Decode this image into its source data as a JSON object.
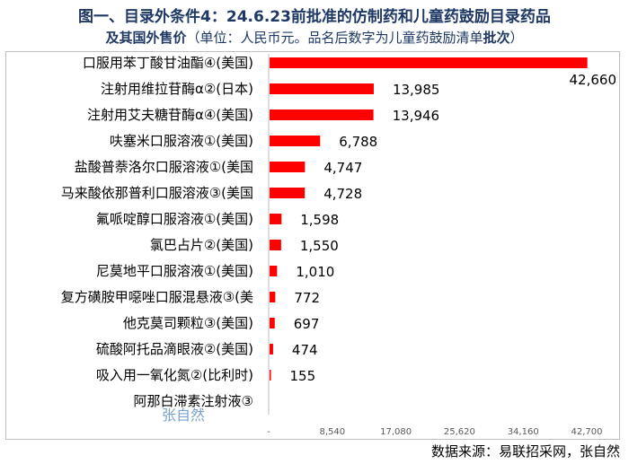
{
  "title": {
    "line1": "图一、目录外条件4：24.6.23前批准的仿制药和儿童药鼓励目录药品",
    "line2_bold": "及其国外售价",
    "line2_normal": "（单位：人民币元。品名后数字为儿童药鼓励清单",
    "line2_bold_end": "批次",
    "line2_close": "）"
  },
  "watermark": "张自然",
  "source": "数据来源：易联招采网，张自然",
  "chart_data": {
    "type": "bar",
    "orientation": "horizontal",
    "categories": [
      "口服用苯丁酸甘油酯④(美国)",
      "注射用维拉苷酶α②(日本)",
      "注射用艾夫糖苷酶α④(美国)",
      "呋塞米口服溶液①(美国)",
      "盐酸普萘洛尔口服溶液①(美国",
      "马来酸依那普利口服溶液③(美国",
      "氟哌啶醇口服溶液①(美国)",
      "氯巴占片②(美国)",
      "尼莫地平口服溶液①(美国)",
      "复方磺胺甲噁唑口服混悬液③(美",
      "他克莫司颗粒③(美国)",
      "硫酸阿托品滴眼液②(美国)",
      "吸入用一氧化氮②(比利时)",
      "阿那白滞素注射液③"
    ],
    "values": [
      42660,
      13985,
      13946,
      6788,
      4747,
      4728,
      1598,
      1550,
      1010,
      772,
      697,
      474,
      155,
      null
    ],
    "value_labels": [
      "42,660",
      "13,985",
      "13,946",
      "6,788",
      "4,747",
      "4,728",
      "1,598",
      "1,550",
      "1,010",
      "772",
      "697",
      "474",
      "155",
      ""
    ],
    "xlim": [
      0,
      42700
    ],
    "xticks": [
      "-",
      "8,540",
      "17,080",
      "25,620",
      "34,160",
      "42,700"
    ],
    "xtick_values": [
      0,
      8540,
      17080,
      25620,
      34160,
      42700
    ],
    "bar_color": "#ff0000",
    "grid": false,
    "legend": "none"
  }
}
